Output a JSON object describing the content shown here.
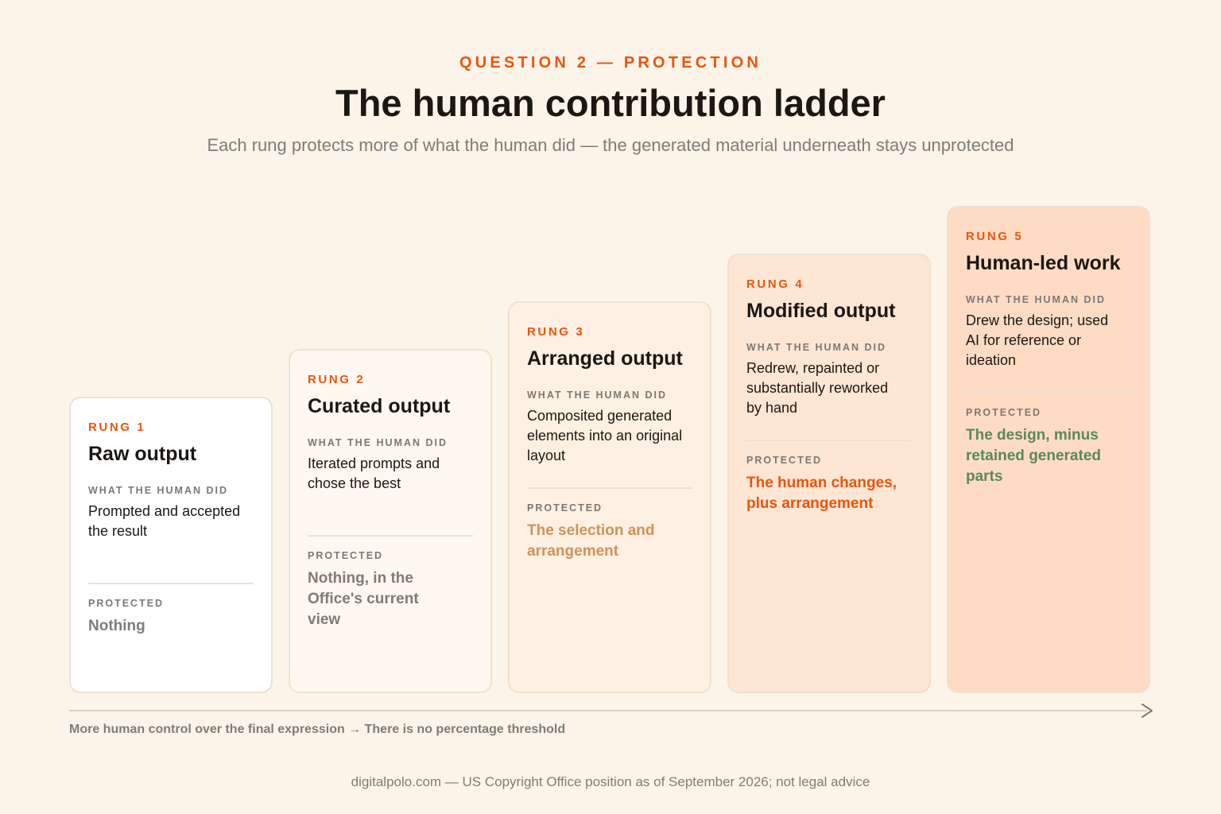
{
  "header": {
    "eyebrow": "QUESTION 2 — PROTECTION",
    "title": "The human contribution ladder",
    "subtitle": "Each rung protects more of what the human did — the generated material underneath stays unprotected"
  },
  "section_labels": {
    "did": "WHAT THE HUMAN DID",
    "protected": "PROTECTED"
  },
  "rungs": [
    {
      "label": "RUNG 1",
      "title": "Raw output",
      "did": "Prompted and accepted the result",
      "protected": "Nothing",
      "background": "#ffffff",
      "protected_color": "#7f7b78"
    },
    {
      "label": "RUNG 2",
      "title": "Curated output",
      "did": "Iterated prompts and chose the best",
      "protected": "Nothing, in the Office's current view",
      "background": "#fef8f1",
      "protected_color": "#7f7b78"
    },
    {
      "label": "RUNG 3",
      "title": "Arranged output",
      "did": "Composited generated elements into an original layout",
      "protected": "The selection and arrangement",
      "background": "#fef0e2",
      "protected_color": "#cf9259"
    },
    {
      "label": "RUNG 4",
      "title": "Modified output",
      "did": "Redrew, repainted or substantially reworked by hand",
      "protected": "The human changes, plus arrangement",
      "background": "#fee6d4",
      "protected_color": "#e8560f"
    },
    {
      "label": "RUNG 5",
      "title": "Human-led work",
      "did": "Drew the design; used AI for reference or ideation",
      "protected": "The design, minus retained generated parts",
      "background": "#fedcc4",
      "protected_color": "#5a8a55"
    }
  ],
  "axis": {
    "caption": "More human control over the final expression → There is no percentage threshold"
  },
  "footer": "digitalpolo.com — US Copyright Office position as of September 2026; not legal advice",
  "colors": {
    "accent": "#e8560f",
    "page_background": "#fdf4e9",
    "card_border": "#efe1cf"
  },
  "icons": {
    "axis_end": "chevron-right-arrowhead"
  }
}
